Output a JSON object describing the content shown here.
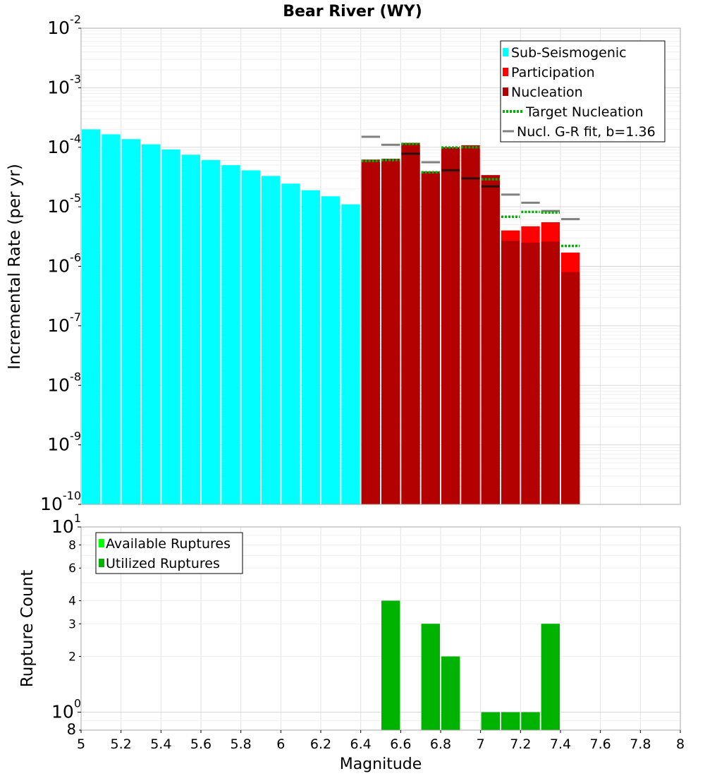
{
  "chart_data": [
    {
      "type": "bar",
      "title": "Bear River (WY)",
      "ylabel": "Incremental Rate (per yr)",
      "xlabel": "",
      "xlim": [
        5,
        8
      ],
      "ylim": [
        1e-10,
        0.01
      ],
      "yscale": "log",
      "y_tick_labels": [
        {
          "base": "10",
          "exp": "-10"
        },
        {
          "base": "10",
          "exp": "-9"
        },
        {
          "base": "10",
          "exp": "-8"
        },
        {
          "base": "10",
          "exp": "-7"
        },
        {
          "base": "10",
          "exp": "-6"
        },
        {
          "base": "10",
          "exp": "-5"
        },
        {
          "base": "10",
          "exp": "-4"
        },
        {
          "base": "10",
          "exp": "-3"
        },
        {
          "base": "10",
          "exp": "-2"
        }
      ],
      "legend": [
        {
          "label": "Sub-Seismogenic",
          "marker": "square",
          "color": "#00ffff"
        },
        {
          "label": "Participation",
          "marker": "square",
          "color": "#ff0000"
        },
        {
          "label": "Nucleation",
          "marker": "square",
          "color": "#b30000"
        },
        {
          "label": "Target Nucleation",
          "marker": "dotted",
          "color": "#00b300"
        },
        {
          "label": "Nucl. G-R fit, b=1.36",
          "marker": "line",
          "color": "#808080"
        }
      ],
      "legend_position": "top-right",
      "bin_width": 0.1,
      "series": [
        {
          "name": "Sub-Seismogenic",
          "color": "#00ffff",
          "x": [
            5.05,
            5.15,
            5.25,
            5.35,
            5.45,
            5.55,
            5.65,
            5.75,
            5.85,
            5.95,
            6.05,
            6.15,
            6.25,
            6.35
          ],
          "values": [
            0.0002,
            0.000165,
            0.000137,
            0.000112,
            9.2e-05,
            7.5e-05,
            6.1e-05,
            5e-05,
            4.1e-05,
            3.3e-05,
            2.45e-05,
            1.9e-05,
            1.5e-05,
            1.1e-05
          ]
        },
        {
          "name": "Participation",
          "color": "#ff0000",
          "x": [
            6.45,
            6.55,
            6.65,
            6.75,
            6.85,
            6.95,
            7.05,
            7.15,
            7.25,
            7.35,
            7.45
          ],
          "values": [
            6.2e-05,
            6.4e-05,
            0.000118,
            3.9e-05,
            0.0001,
            0.000108,
            3.4e-05,
            4e-06,
            4.7e-06,
            5.5e-06,
            1.7e-06
          ]
        },
        {
          "name": "Nucleation",
          "color": "#b30000",
          "x": [
            6.45,
            6.55,
            6.65,
            6.75,
            6.85,
            6.95,
            7.05,
            7.15,
            7.25,
            7.35,
            7.45
          ],
          "values": [
            6.2e-05,
            6.4e-05,
            0.000118,
            3.9e-05,
            0.0001,
            0.000108,
            3.4e-05,
            2.7e-06,
            2.5e-06,
            2.6e-06,
            8e-07
          ]
        },
        {
          "name": "Target Nucleation",
          "color": "#00b300",
          "style": "dotted",
          "x": [
            6.45,
            6.55,
            6.65,
            6.75,
            6.85,
            6.95,
            7.05,
            7.15,
            7.25,
            7.35,
            7.45
          ],
          "values": [
            5.9e-05,
            6.1e-05,
            0.000114,
            3.8e-05,
            9.9e-05,
            0.0001,
            2.9e-05,
            6.8e-06,
            8.2e-06,
            8e-06,
            2.2e-06
          ]
        },
        {
          "name": "Nucl. G-R fit, b=1.36",
          "color": "#808080",
          "style": "line",
          "x": [
            6.45,
            6.55,
            6.65,
            6.75,
            6.85,
            6.95,
            7.05,
            7.15,
            7.25,
            7.35,
            7.45
          ],
          "values": [
            0.00015,
            0.00011,
            7.8e-05,
            5.6e-05,
            4.1e-05,
            3e-05,
            2.2e-05,
            1.6e-05,
            1.17e-05,
            8.5e-06,
            6.2e-06
          ]
        }
      ]
    },
    {
      "type": "bar",
      "title": "",
      "ylabel": "Rupture Count",
      "xlabel": "Magnitude",
      "xlim": [
        5,
        8
      ],
      "ylim": [
        0.8,
        10
      ],
      "yscale": "log",
      "x_ticks": [
        "5",
        "5.2",
        "5.4",
        "5.6",
        "5.8",
        "6",
        "6.2",
        "6.4",
        "6.6",
        "6.8",
        "7",
        "7.2",
        "7.4",
        "7.6",
        "7.8",
        "8"
      ],
      "y_major_ticks": [
        {
          "value": 1,
          "base": "10",
          "exp": "0"
        },
        {
          "value": 10,
          "base": "10",
          "exp": "1"
        }
      ],
      "y_minor_ticks": [
        {
          "value": 0.8,
          "label": "8"
        },
        {
          "value": 2,
          "label": "2"
        },
        {
          "value": 3,
          "label": "3"
        },
        {
          "value": 4,
          "label": "4"
        },
        {
          "value": 6,
          "label": "6"
        },
        {
          "value": 8,
          "label": "8"
        }
      ],
      "legend": [
        {
          "label": "Available Ruptures",
          "marker": "square",
          "color": "#00ff00"
        },
        {
          "label": "Utilized Ruptures",
          "marker": "square",
          "color": "#00b300"
        }
      ],
      "legend_position": "top-left",
      "bin_width": 0.1,
      "series": [
        {
          "name": "Available Ruptures",
          "color": "#00ff00",
          "x": [
            6.55,
            6.75,
            6.85,
            7.05,
            7.15,
            7.25,
            7.35
          ],
          "values": [
            4,
            3,
            2,
            1,
            1,
            1,
            3
          ]
        },
        {
          "name": "Utilized Ruptures",
          "color": "#00b300",
          "x": [
            6.55,
            6.75,
            6.85,
            7.05,
            7.15,
            7.25,
            7.35
          ],
          "values": [
            4,
            3,
            2,
            1,
            1,
            1,
            3
          ]
        }
      ]
    }
  ]
}
